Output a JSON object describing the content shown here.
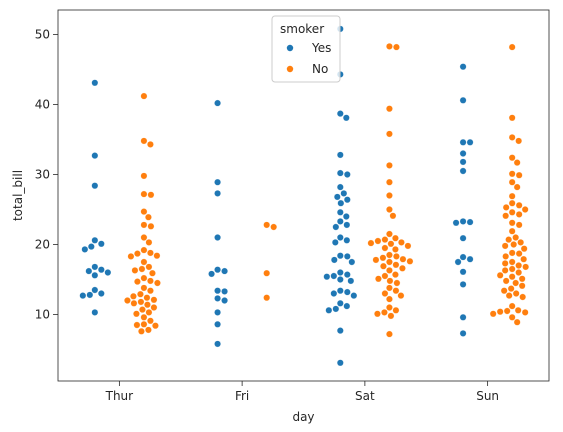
{
  "chart_data": {
    "type": "scatter",
    "subtype": "swarm",
    "xlabel": "day",
    "ylabel": "total_bill",
    "categories": [
      "Thur",
      "Fri",
      "Sat",
      "Sun"
    ],
    "ylim": [
      0.5,
      53.5
    ],
    "yticks": [
      10,
      20,
      30,
      40,
      50
    ],
    "grid": false,
    "legend": {
      "title": "smoker",
      "placement": "top-center"
    },
    "series": [
      {
        "name": "Yes",
        "color": "#1f77b4",
        "values": [
          [
            43.1,
            32.7,
            28.4,
            20.6,
            20.1,
            19.7,
            19.3,
            16.8,
            16.4,
            16.2,
            16.0,
            15.6,
            13.5,
            13.0,
            12.8,
            12.7,
            10.3
          ],
          [
            40.2,
            28.9,
            27.3,
            21.0,
            16.4,
            16.2,
            15.8,
            13.4,
            13.3,
            12.3,
            12.0,
            10.3,
            8.6,
            5.8
          ],
          [
            50.8,
            44.3,
            38.7,
            38.1,
            32.8,
            30.2,
            30.0,
            28.2,
            27.3,
            26.8,
            26.4,
            25.9,
            24.6,
            24.0,
            23.3,
            22.8,
            22.5,
            21.0,
            20.6,
            20.3,
            18.4,
            18.3,
            17.8,
            17.5,
            16.0,
            15.7,
            15.5,
            15.4,
            15.0,
            14.8,
            13.4,
            13.2,
            13.0,
            12.7,
            11.6,
            11.2,
            10.8,
            10.6,
            7.7,
            3.1
          ],
          [
            45.4,
            40.6,
            34.6,
            34.6,
            33.0,
            31.8,
            30.5,
            23.3,
            23.2,
            23.1,
            20.9,
            18.2,
            17.9,
            17.5,
            16.1,
            14.3,
            9.6,
            7.3
          ]
        ]
      },
      {
        "name": "No",
        "color": "#ff7f0e",
        "values": [
          [
            41.2,
            34.8,
            34.3,
            29.8,
            27.2,
            27.1,
            24.7,
            23.9,
            22.8,
            22.6,
            21.0,
            20.3,
            19.2,
            18.8,
            18.7,
            18.4,
            18.3,
            17.5,
            16.8,
            16.5,
            16.3,
            15.9,
            15.2,
            14.8,
            14.7,
            14.5,
            13.8,
            13.4,
            12.9,
            12.6,
            12.4,
            12.1,
            12.0,
            11.8,
            11.6,
            11.4,
            11.0,
            10.7,
            10.3,
            10.1,
            9.6,
            9.1,
            8.6,
            8.5,
            8.4,
            7.8,
            7.6
          ],
          [
            22.8,
            22.5,
            15.9,
            12.4
          ],
          [
            48.3,
            48.2,
            39.4,
            35.8,
            31.3,
            28.9,
            27.0,
            25.0,
            24.1,
            21.5,
            20.9,
            20.7,
            20.5,
            20.3,
            20.2,
            20.1,
            19.8,
            19.5,
            19.3,
            18.5,
            18.3,
            18.1,
            17.9,
            17.8,
            17.6,
            17.5,
            17.1,
            16.9,
            16.6,
            16.3,
            15.7,
            15.5,
            15.1,
            14.8,
            14.5,
            13.8,
            13.4,
            13.0,
            12.7,
            12.2,
            11.0,
            10.6,
            10.3,
            10.1,
            9.8,
            7.2
          ],
          [
            48.2,
            38.1,
            35.3,
            34.8,
            32.4,
            31.7,
            30.1,
            29.9,
            28.9,
            28.2,
            26.9,
            25.9,
            25.6,
            25.3,
            25.0,
            24.6,
            24.3,
            24.1,
            23.1,
            22.8,
            21.9,
            21.0,
            20.7,
            20.3,
            20.0,
            19.8,
            19.4,
            18.8,
            18.7,
            18.3,
            17.9,
            17.5,
            17.3,
            17.0,
            16.8,
            16.5,
            16.3,
            16.0,
            15.6,
            15.4,
            15.1,
            14.8,
            14.5,
            14.1,
            13.7,
            13.4,
            13.0,
            12.7,
            12.5,
            11.2,
            10.6,
            10.5,
            10.4,
            10.3,
            10.1,
            9.6,
            8.9
          ]
        ]
      }
    ]
  }
}
